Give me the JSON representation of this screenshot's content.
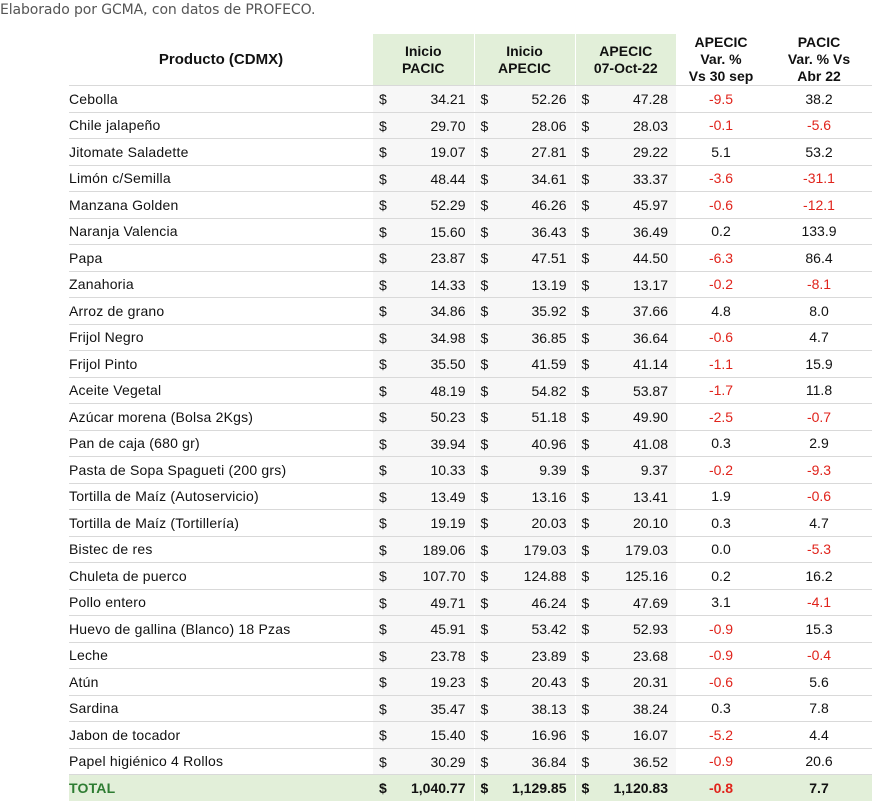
{
  "caption": "Elaborado por GCMA, con datos de PROFECO.",
  "headers": {
    "product": "Producto (CDMX)",
    "pacic_line1": "Inicio",
    "pacic_line2": "PACIC",
    "apecic_line1": "Inicio",
    "apecic_line2": "APECIC",
    "current_line1": "APECIC",
    "current_line2": "07-Oct-22",
    "var_sep_line1": "APECIC",
    "var_sep_line2": "Var. %",
    "var_sep_line3": "Vs  30 sep",
    "var_abr_line1": "PACIC",
    "var_abr_line2": "Var. % Vs",
    "var_abr_line3": "Abr 22"
  },
  "currency_symbol": "$",
  "rows": [
    {
      "product": "Cebolla",
      "pacic": "34.21",
      "apecic": "52.26",
      "current": "47.28",
      "var_sep": "-9.5",
      "var_abr": "38.2"
    },
    {
      "product": "Chile jalapeño",
      "pacic": "29.70",
      "apecic": "28.06",
      "current": "28.03",
      "var_sep": "-0.1",
      "var_abr": "-5.6"
    },
    {
      "product": "Jitomate Saladette",
      "pacic": "19.07",
      "apecic": "27.81",
      "current": "29.22",
      "var_sep": "5.1",
      "var_abr": "53.2"
    },
    {
      "product": "Limón c/Semilla",
      "pacic": "48.44",
      "apecic": "34.61",
      "current": "33.37",
      "var_sep": "-3.6",
      "var_abr": "-31.1"
    },
    {
      "product": "Manzana Golden",
      "pacic": "52.29",
      "apecic": "46.26",
      "current": "45.97",
      "var_sep": "-0.6",
      "var_abr": "-12.1"
    },
    {
      "product": "Naranja Valencia",
      "pacic": "15.60",
      "apecic": "36.43",
      "current": "36.49",
      "var_sep": "0.2",
      "var_abr": "133.9"
    },
    {
      "product": "Papa",
      "pacic": "23.87",
      "apecic": "47.51",
      "current": "44.50",
      "var_sep": "-6.3",
      "var_abr": "86.4"
    },
    {
      "product": "Zanahoria",
      "pacic": "14.33",
      "apecic": "13.19",
      "current": "13.17",
      "var_sep": "-0.2",
      "var_abr": "-8.1"
    },
    {
      "product": "Arroz de grano",
      "pacic": "34.86",
      "apecic": "35.92",
      "current": "37.66",
      "var_sep": "4.8",
      "var_abr": "8.0"
    },
    {
      "product": "Frijol Negro",
      "pacic": "34.98",
      "apecic": "36.85",
      "current": "36.64",
      "var_sep": "-0.6",
      "var_abr": "4.7"
    },
    {
      "product": "Frijol Pinto",
      "pacic": "35.50",
      "apecic": "41.59",
      "current": "41.14",
      "var_sep": "-1.1",
      "var_abr": "15.9"
    },
    {
      "product": "Aceite Vegetal",
      "pacic": "48.19",
      "apecic": "54.82",
      "current": "53.87",
      "var_sep": "-1.7",
      "var_abr": "11.8"
    },
    {
      "product": "Azúcar morena (Bolsa 2Kgs)",
      "pacic": "50.23",
      "apecic": "51.18",
      "current": "49.90",
      "var_sep": "-2.5",
      "var_abr": "-0.7"
    },
    {
      "product": "Pan de caja (680 gr)",
      "pacic": "39.94",
      "apecic": "40.96",
      "current": "41.08",
      "var_sep": "0.3",
      "var_abr": "2.9"
    },
    {
      "product": "Pasta de Sopa Spagueti (200 grs)",
      "pacic": "10.33",
      "apecic": "9.39",
      "current": "9.37",
      "var_sep": "-0.2",
      "var_abr": "-9.3"
    },
    {
      "product": "Tortilla de Maíz (Autoservicio)",
      "pacic": "13.49",
      "apecic": "13.16",
      "current": "13.41",
      "var_sep": "1.9",
      "var_abr": "-0.6"
    },
    {
      "product": "Tortilla de Maíz (Tortillería)",
      "pacic": "19.19",
      "apecic": "20.03",
      "current": "20.10",
      "var_sep": "0.3",
      "var_abr": "4.7"
    },
    {
      "product": "Bistec de res",
      "pacic": "189.06",
      "apecic": "179.03",
      "current": "179.03",
      "var_sep": "0.0",
      "var_abr": "-5.3"
    },
    {
      "product": "Chuleta de puerco",
      "pacic": "107.70",
      "apecic": "124.88",
      "current": "125.16",
      "var_sep": "0.2",
      "var_abr": "16.2"
    },
    {
      "product": "Pollo entero",
      "pacic": "49.71",
      "apecic": "46.24",
      "current": "47.69",
      "var_sep": "3.1",
      "var_abr": "-4.1"
    },
    {
      "product": "Huevo de gallina (Blanco) 18 Pzas",
      "pacic": "45.91",
      "apecic": "53.42",
      "current": "52.93",
      "var_sep": "-0.9",
      "var_abr": "15.3"
    },
    {
      "product": "Leche",
      "pacic": "23.78",
      "apecic": "23.89",
      "current": "23.68",
      "var_sep": "-0.9",
      "var_abr": "-0.4"
    },
    {
      "product": "Atún",
      "pacic": "19.23",
      "apecic": "20.43",
      "current": "20.31",
      "var_sep": "-0.6",
      "var_abr": "5.6"
    },
    {
      "product": "Sardina",
      "pacic": "35.47",
      "apecic": "38.13",
      "current": "38.24",
      "var_sep": "0.3",
      "var_abr": "7.8"
    },
    {
      "product": "Jabon de tocador",
      "pacic": "15.40",
      "apecic": "16.96",
      "current": "16.07",
      "var_sep": "-5.2",
      "var_abr": "4.4"
    },
    {
      "product": "Papel higiénico 4 Rollos",
      "pacic": "30.29",
      "apecic": "36.84",
      "current": "36.52",
      "var_sep": "-0.9",
      "var_abr": "20.6"
    }
  ],
  "total": {
    "label": "TOTAL",
    "pacic": "1,040.77",
    "apecic": "1,129.85",
    "current": "1,120.83",
    "var_sep": "-0.8",
    "var_abr": "7.7"
  },
  "colors": {
    "negative": "#e0231b",
    "highlight": "#e2efd9",
    "total_label": "#2e7d32"
  }
}
